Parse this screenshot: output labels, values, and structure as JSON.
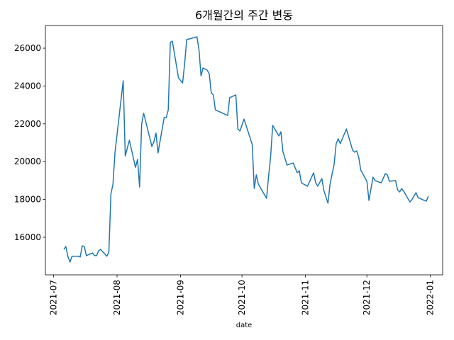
{
  "chart_data": {
    "type": "line",
    "title": "6개월간의 주간 변동",
    "xlabel": "date",
    "color": "#1f77b4",
    "x": [
      "2021-07-06",
      "2021-07-07",
      "2021-07-08",
      "2021-07-09",
      "2021-07-10",
      "2021-07-13",
      "2021-07-14",
      "2021-07-15",
      "2021-07-16",
      "2021-07-17",
      "2021-07-20",
      "2021-07-21",
      "2021-07-22",
      "2021-07-23",
      "2021-07-24",
      "2021-07-27",
      "2021-07-28",
      "2021-07-29",
      "2021-07-30",
      "2021-07-31",
      "2021-08-04",
      "2021-08-05",
      "2021-08-07",
      "2021-08-10",
      "2021-08-11",
      "2021-08-12",
      "2021-08-13",
      "2021-08-14",
      "2021-08-18",
      "2021-08-19",
      "2021-08-20",
      "2021-08-21",
      "2021-08-24",
      "2021-08-25",
      "2021-08-26",
      "2021-08-27",
      "2021-08-28",
      "2021-08-31",
      "2021-09-02",
      "2021-09-03",
      "2021-09-04",
      "2021-09-09",
      "2021-09-10",
      "2021-09-11",
      "2021-09-12",
      "2021-09-14",
      "2021-09-15",
      "2021-09-16",
      "2021-09-17",
      "2021-09-18",
      "2021-09-24",
      "2021-09-25",
      "2021-09-28",
      "2021-09-29",
      "2021-09-30",
      "2021-10-02",
      "2021-10-06",
      "2021-10-07",
      "2021-10-08",
      "2021-10-09",
      "2021-10-13",
      "2021-10-14",
      "2021-10-15",
      "2021-10-16",
      "2021-10-19",
      "2021-10-20",
      "2021-10-21",
      "2021-10-23",
      "2021-10-26",
      "2021-10-28",
      "2021-10-29",
      "2021-10-30",
      "2021-11-02",
      "2021-11-04",
      "2021-11-05",
      "2021-11-06",
      "2021-11-07",
      "2021-11-09",
      "2021-11-10",
      "2021-11-12",
      "2021-11-13",
      "2021-11-15",
      "2021-11-16",
      "2021-11-17",
      "2021-11-18",
      "2021-11-21",
      "2021-11-24",
      "2021-11-25",
      "2021-11-26",
      "2021-11-27",
      "2021-11-28",
      "2021-12-01",
      "2021-12-02",
      "2021-12-04",
      "2021-12-05",
      "2021-12-08",
      "2021-12-10",
      "2021-12-11",
      "2021-12-12",
      "2021-12-15",
      "2021-12-16",
      "2021-12-17",
      "2021-12-18",
      "2021-12-19",
      "2021-12-22",
      "2021-12-23",
      "2021-12-25",
      "2021-12-26",
      "2021-12-29",
      "2021-12-30",
      "2021-12-31"
    ],
    "values": [
      15360,
      15510,
      14990,
      14690,
      15000,
      15000,
      14960,
      15550,
      15510,
      15030,
      15170,
      15030,
      15030,
      15290,
      15360,
      15000,
      15220,
      18290,
      18810,
      20500,
      24280,
      20300,
      21130,
      19700,
      20120,
      18660,
      21990,
      22560,
      20800,
      21060,
      21510,
      20460,
      22330,
      22330,
      22740,
      26300,
      26370,
      24430,
      24160,
      25180,
      26450,
      26600,
      25930,
      24540,
      24950,
      24840,
      24650,
      23640,
      23530,
      22740,
      22440,
      23380,
      23530,
      21730,
      21620,
      22250,
      20910,
      18580,
      19300,
      18810,
      18060,
      19220,
      20270,
      21920,
      21360,
      21580,
      20530,
      19820,
      19930,
      19410,
      19520,
      18880,
      18700,
      19180,
      19410,
      18880,
      18700,
      19110,
      18470,
      17800,
      18810,
      19860,
      20950,
      21210,
      20950,
      21730,
      20610,
      20500,
      20570,
      20240,
      19560,
      18960,
      17950,
      19180,
      19000,
      18880,
      19370,
      19300,
      18960,
      19000,
      18510,
      18400,
      18580,
      18430,
      17870,
      17990,
      18360,
      18100,
      17950,
      17910,
      18170
    ],
    "xlim": [
      "2021-06-27",
      "2022-01-07"
    ],
    "xticks": [
      {
        "value": "2021-07-01",
        "label": "2021-07"
      },
      {
        "value": "2021-08-01",
        "label": "2021-08"
      },
      {
        "value": "2021-09-01",
        "label": "2021-09"
      },
      {
        "value": "2021-10-01",
        "label": "2021-10"
      },
      {
        "value": "2021-11-01",
        "label": "2021-11"
      },
      {
        "value": "2021-12-01",
        "label": "2021-12"
      },
      {
        "value": "2022-01-01",
        "label": "2022-01"
      }
    ],
    "ylim": [
      14015,
      27200
    ],
    "yticks": [
      16000,
      18000,
      20000,
      22000,
      24000,
      26000
    ]
  }
}
